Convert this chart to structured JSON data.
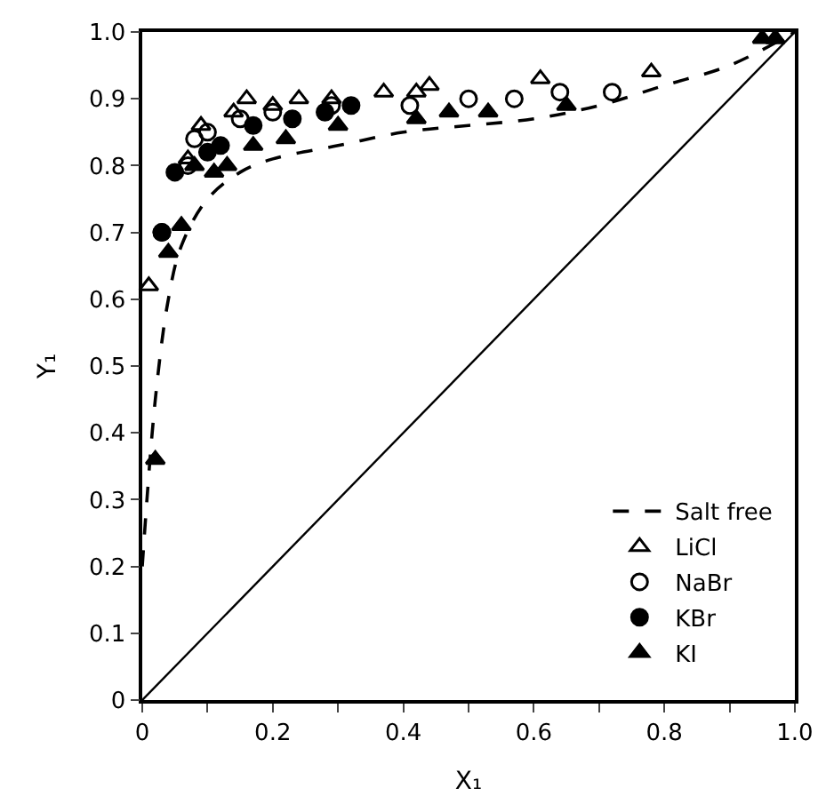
{
  "chart_data": {
    "type": "scatter",
    "xlabel": "X₁",
    "ylabel": "Y₁",
    "xlim": [
      0,
      1
    ],
    "ylim": [
      0,
      1
    ],
    "xticks": [
      "0",
      {
        "value": 0.1,
        "label": null
      },
      0.2,
      {
        "value": 0.3,
        "label": null
      },
      0.4,
      {
        "value": 0.5,
        "label": null
      },
      0.6,
      {
        "value": 0.7,
        "label": null
      },
      0.8,
      {
        "value": 0.9,
        "label": null
      },
      "1.0"
    ],
    "yticks": [
      0,
      0.1,
      0.2,
      0.3,
      0.4,
      0.5,
      0.6,
      0.7,
      0.8,
      0.9,
      {
        "value": 1,
        "label": "1.0"
      }
    ],
    "legend": "bottom right",
    "series": [
      {
        "name": "Salt free",
        "type": "line",
        "line_style": "dashed",
        "marker": "none",
        "color": "#000000",
        "x": [
          0,
          0.02,
          0.04,
          0.06,
          0.1,
          0.15,
          0.2,
          0.3,
          0.4,
          0.5,
          0.6,
          0.7,
          0.8,
          0.9,
          1
        ],
        "values": [
          0.2,
          0.45,
          0.6,
          0.68,
          0.75,
          0.79,
          0.81,
          0.83,
          0.85,
          0.86,
          0.87,
          0.89,
          0.92,
          0.95,
          1
        ]
      },
      {
        "name": "LiCl",
        "marker": "triangle",
        "color": "#000000",
        "x": [
          0.01,
          0.07,
          0.09,
          0.14,
          0.16,
          0.2,
          0.24,
          0.29,
          0.37,
          0.42,
          0.44,
          0.61,
          0.78,
          0.97
        ],
        "values": [
          0.62,
          0.81,
          0.86,
          0.88,
          0.9,
          0.89,
          0.9,
          0.9,
          0.91,
          0.91,
          0.92,
          0.93,
          0.94,
          0.99
        ]
      },
      {
        "name": "NaBr",
        "marker": "circle",
        "color": "#000000",
        "x": [
          0.03,
          0.07,
          0.08,
          0.1,
          0.15,
          0.2,
          0.29,
          0.41,
          0.5,
          0.57,
          0.64,
          0.72
        ],
        "values": [
          0.7,
          0.8,
          0.84,
          0.85,
          0.87,
          0.88,
          0.89,
          0.89,
          0.9,
          0.9,
          0.91,
          0.91
        ]
      },
      {
        "name": "KBr",
        "marker": "circle",
        "color": "#000000",
        "x": [
          0.03,
          0.05,
          0.1,
          0.12,
          0.17,
          0.23,
          0.28,
          0.32
        ],
        "values": [
          0.7,
          0.79,
          0.82,
          0.83,
          0.86,
          0.87,
          0.88,
          0.89
        ]
      },
      {
        "name": "KI",
        "marker": "triangle",
        "color": "#000000",
        "x": [
          0.02,
          0.04,
          0.06,
          0.08,
          0.11,
          0.13,
          0.17,
          0.22,
          0.3,
          0.42,
          0.47,
          0.53,
          0.65,
          0.95,
          0.97
        ],
        "values": [
          0.36,
          0.67,
          0.71,
          0.8,
          0.79,
          0.8,
          0.83,
          0.84,
          0.86,
          0.87,
          0.88,
          0.88,
          0.89,
          0.99,
          0.99
        ]
      },
      {
        "type": "line",
        "line_style": "solid",
        "marker": "none",
        "color": "#000000",
        "x": [
          0,
          1
        ],
        "values": [
          0,
          1
        ]
      }
    ]
  }
}
